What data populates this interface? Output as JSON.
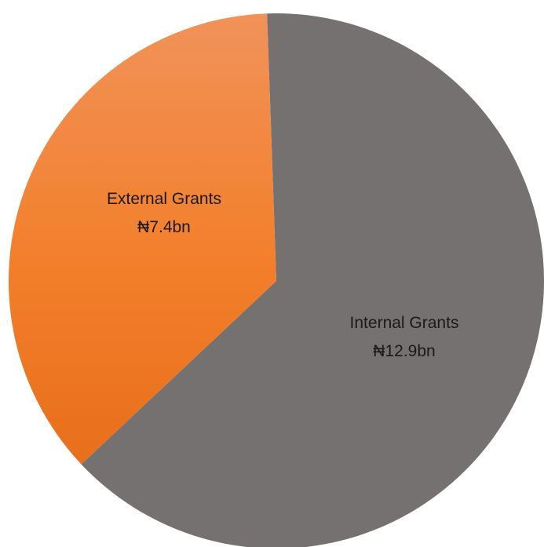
{
  "chart_data": {
    "type": "pie",
    "title": "",
    "slices": [
      {
        "name": "Internal Grants",
        "display_value": "₦12.9bn",
        "value": 12.9,
        "color": "#757170"
      },
      {
        "name": "External Grants",
        "display_value": "₦7.4bn",
        "value": 7.4,
        "color": "#f07a2a"
      }
    ],
    "unit": "₦ billion",
    "legend": "none"
  }
}
